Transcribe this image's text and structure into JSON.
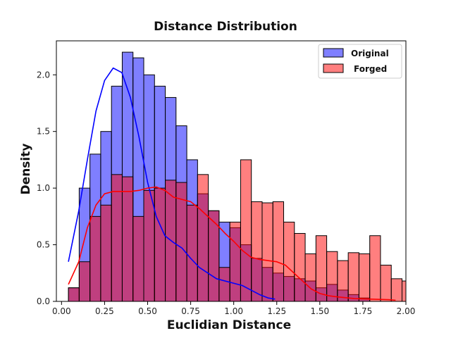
{
  "chart_data": {
    "type": "bar",
    "title": "Distance Distribution",
    "xlabel": "Euclidian Distance",
    "ylabel": "Density",
    "xlim": [
      -0.03,
      2.0
    ],
    "ylim": [
      0,
      2.3
    ],
    "xticks": [
      0.0,
      0.25,
      0.5,
      0.75,
      1.0,
      1.25,
      1.5,
      1.75,
      2.0
    ],
    "xtick_labels": [
      "0.00",
      "0.25",
      "0.50",
      "0.75",
      "1.00",
      "1.25",
      "1.50",
      "1.75",
      "2.00"
    ],
    "yticks": [
      0.0,
      0.5,
      1.0,
      1.5,
      2.0
    ],
    "ytick_labels": [
      "0.0",
      "0.5",
      "1.0",
      "1.5",
      "2.0"
    ],
    "grid": false,
    "legend_position": "top-right",
    "series": [
      {
        "name": "Original",
        "color": "#0000ff",
        "bin_start": 0.04,
        "bin_width": 0.0625,
        "values": [
          0.12,
          1.0,
          1.3,
          1.5,
          1.9,
          2.2,
          2.15,
          2.0,
          1.9,
          1.8,
          1.55,
          1.25,
          0.95,
          0.8,
          0.7,
          0.65,
          0.5,
          0.38,
          0.3,
          0.25,
          0.22,
          0.2,
          0.18,
          0.12,
          0.15,
          0.1,
          0.06,
          0.03
        ],
        "kde": [
          [
            0.04,
            0.35
          ],
          [
            0.1,
            0.8
          ],
          [
            0.15,
            1.25
          ],
          [
            0.2,
            1.68
          ],
          [
            0.25,
            1.95
          ],
          [
            0.3,
            2.06
          ],
          [
            0.35,
            2.02
          ],
          [
            0.4,
            1.8
          ],
          [
            0.45,
            1.45
          ],
          [
            0.5,
            1.05
          ],
          [
            0.55,
            0.75
          ],
          [
            0.6,
            0.58
          ],
          [
            0.65,
            0.52
          ],
          [
            0.7,
            0.47
          ],
          [
            0.75,
            0.38
          ],
          [
            0.8,
            0.3
          ],
          [
            0.85,
            0.25
          ],
          [
            0.9,
            0.2
          ],
          [
            0.95,
            0.18
          ],
          [
            1.0,
            0.16
          ],
          [
            1.05,
            0.14
          ],
          [
            1.1,
            0.1
          ],
          [
            1.15,
            0.06
          ],
          [
            1.2,
            0.03
          ],
          [
            1.24,
            0.02
          ]
        ]
      },
      {
        "name": "Forged",
        "color": "#ff0000",
        "bin_start": 0.04,
        "bin_width": 0.0625,
        "values": [
          0.12,
          0.35,
          0.75,
          0.85,
          1.12,
          1.1,
          0.75,
          0.98,
          1.0,
          1.07,
          1.05,
          0.85,
          1.12,
          0.8,
          0.3,
          0.7,
          1.25,
          0.88,
          0.87,
          0.88,
          0.7,
          0.6,
          0.42,
          0.58,
          0.44,
          0.36,
          0.43,
          0.42,
          0.58,
          0.32,
          0.2,
          0.18,
          0.32,
          0.18,
          0.22,
          0.1,
          0.2,
          0.18,
          0.02,
          0.02,
          0.02,
          0.02,
          0.02,
          0.01,
          0.0,
          0.0,
          0.0,
          0.1,
          0.1,
          0.0,
          0.0,
          0.0,
          0.0,
          0.0,
          0.0,
          0.0,
          0.0,
          0.0,
          0.0,
          0.0,
          0.0,
          0.0,
          0.0
        ],
        "kde": [
          [
            0.04,
            0.15
          ],
          [
            0.1,
            0.35
          ],
          [
            0.15,
            0.65
          ],
          [
            0.2,
            0.85
          ],
          [
            0.25,
            0.95
          ],
          [
            0.3,
            0.97
          ],
          [
            0.35,
            0.97
          ],
          [
            0.4,
            0.97
          ],
          [
            0.45,
            0.98
          ],
          [
            0.5,
            1.0
          ],
          [
            0.55,
            1.01
          ],
          [
            0.6,
            0.98
          ],
          [
            0.65,
            0.92
          ],
          [
            0.7,
            0.9
          ],
          [
            0.75,
            0.88
          ],
          [
            0.8,
            0.82
          ],
          [
            0.85,
            0.75
          ],
          [
            0.9,
            0.68
          ],
          [
            0.95,
            0.6
          ],
          [
            1.0,
            0.53
          ],
          [
            1.05,
            0.45
          ],
          [
            1.1,
            0.39
          ],
          [
            1.15,
            0.37
          ],
          [
            1.2,
            0.36
          ],
          [
            1.25,
            0.35
          ],
          [
            1.3,
            0.32
          ],
          [
            1.35,
            0.25
          ],
          [
            1.4,
            0.18
          ],
          [
            1.45,
            0.11
          ],
          [
            1.5,
            0.07
          ],
          [
            1.55,
            0.05
          ],
          [
            1.6,
            0.04
          ],
          [
            1.7,
            0.025
          ],
          [
            1.8,
            0.02
          ],
          [
            1.9,
            0.015
          ],
          [
            1.94,
            0.01
          ]
        ]
      }
    ]
  }
}
